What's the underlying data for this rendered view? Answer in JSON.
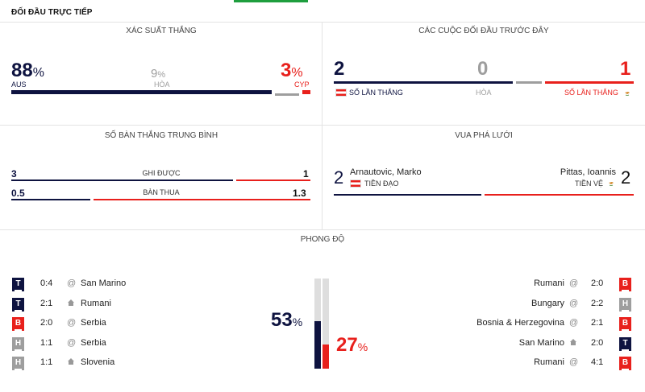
{
  "header": {
    "title": "ĐỐI ĐẦU TRỰC TIẾP"
  },
  "win_prob": {
    "title": "XÁC SUẤT THẮNG",
    "home_value": "88",
    "home_team": "AUS",
    "draw_value": "9",
    "draw_label": "HÒA",
    "away_value": "3",
    "away_team": "CYP",
    "pct_symbol": "%",
    "home_fraction": 0.88,
    "draw_fraction": 0.09,
    "away_fraction": 0.03
  },
  "h2h": {
    "title": "CÁC CUỘC ĐỐI ĐẦU TRƯỚC ĐÂY",
    "home_wins": "2",
    "draws": "0",
    "away_wins": "1",
    "home_label": "SỐ LẦN THẮNG",
    "draw_label": "HÒA",
    "away_label": "SỐ LẦN THẮNG"
  },
  "avg_goals": {
    "title": "SỐ BÀN THẮNG TRUNG BÌNH",
    "rows": [
      {
        "home": "3",
        "label": "GHI ĐƯỢC",
        "away": "1",
        "home_fraction": 0.75
      },
      {
        "home": "0.5",
        "label": "BÀN THUA",
        "away": "1.3",
        "home_fraction": 0.28
      }
    ]
  },
  "top_scorer": {
    "title": "VUA PHÁ LƯỚI",
    "home": {
      "goals": "2",
      "name": "Arnautovic, Marko",
      "position": "TIỀN ĐẠO"
    },
    "away": {
      "goals": "2",
      "name": "Pittas, Ioannis",
      "position": "TIỀN VỆ"
    },
    "home_fraction": 0.5
  },
  "form": {
    "title": "PHONG ĐỘ",
    "home_pct": "53",
    "away_pct": "27",
    "pct_symbol": "%",
    "home_fraction": 0.53,
    "away_fraction": 0.27,
    "home_matches": [
      {
        "result": "T",
        "score": "0:4",
        "venue": "@",
        "opponent": "San Marino"
      },
      {
        "result": "T",
        "score": "2:1",
        "venue": "home",
        "opponent": "Rumani"
      },
      {
        "result": "B",
        "score": "2:0",
        "venue": "@",
        "opponent": "Serbia"
      },
      {
        "result": "H",
        "score": "1:1",
        "venue": "@",
        "opponent": "Serbia"
      },
      {
        "result": "H",
        "score": "1:1",
        "venue": "home",
        "opponent": "Slovenia"
      }
    ],
    "away_matches": [
      {
        "result": "B",
        "score": "2:0",
        "venue": "@",
        "opponent": "Rumani"
      },
      {
        "result": "H",
        "score": "2:2",
        "venue": "@",
        "opponent": "Bungary"
      },
      {
        "result": "B",
        "score": "2:1",
        "venue": "@",
        "opponent": "Bosnia & Herzegovina"
      },
      {
        "result": "T",
        "score": "2:0",
        "venue": "home",
        "opponent": "San Marino"
      },
      {
        "result": "B",
        "score": "4:1",
        "venue": "@",
        "opponent": "Rumani"
      }
    ]
  },
  "colors": {
    "navy": "#0e1340",
    "red": "#e8201c",
    "gray": "#9e9e9e",
    "green": "#1e9e3e"
  }
}
